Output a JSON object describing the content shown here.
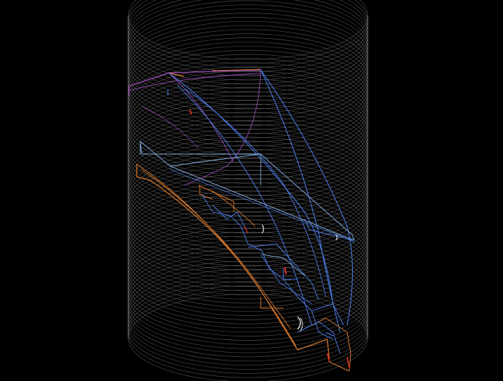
{
  "scene": {
    "background": "#000000",
    "cylinder": {
      "ring_color": "#6a6a6a",
      "edge_color": "#8a8a8a"
    },
    "wire_colors": {
      "blue": "#4a78e0",
      "light_blue": "#7fa8d8",
      "orange": "#d8782a",
      "purple": "#9a4ab8",
      "red": "#e0301c",
      "white": "#e8e8e8"
    }
  }
}
